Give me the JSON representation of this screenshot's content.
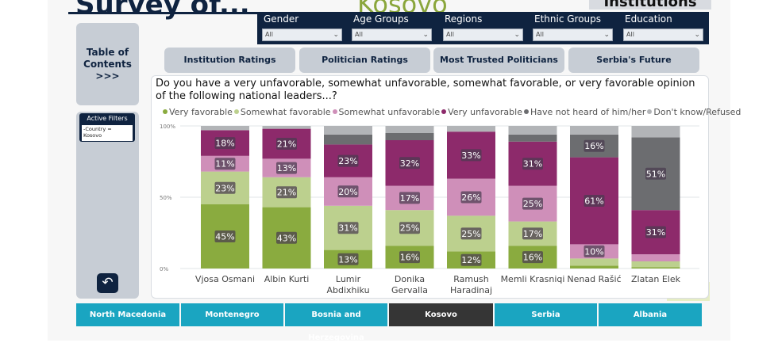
{
  "header": {
    "title_left": "Survey of...",
    "title_center": "Kosovo",
    "title_right": "Institutions"
  },
  "filters": [
    {
      "label": "Gender",
      "value": "All"
    },
    {
      "label": "Age Groups",
      "value": "All"
    },
    {
      "label": "Regions",
      "value": "All"
    },
    {
      "label": "Ethnic Groups",
      "value": "All"
    },
    {
      "label": "Education",
      "value": "All"
    }
  ],
  "sidebar": {
    "toc_line1": "Table of",
    "toc_line2": "Contents",
    "toc_line3": ">>>",
    "active_filters_title": "Active Filters",
    "active_filters_line1": "-Country =",
    "active_filters_line2": "Kosovo",
    "back_icon": "↶"
  },
  "tabs": [
    {
      "label": "Institution Ratings"
    },
    {
      "label": "Politician Ratings"
    },
    {
      "label": "Most Trusted Politicians"
    },
    {
      "label": "Serbia's Future"
    }
  ],
  "chart_data": {
    "type": "bar",
    "stacked": true,
    "title": "Do you have a very unfavorable, somewhat unfavorable, somewhat favorable, or very favorable opinion of the following national leaders...?",
    "y_ticks": [
      "100%",
      "50%",
      "0%"
    ],
    "ylim": [
      0,
      100
    ],
    "categories": [
      [
        "Vjosa Osmani"
      ],
      [
        "Albin Kurti"
      ],
      [
        "Lumir",
        "Abdixhiku"
      ],
      [
        "Donika",
        "Gervalla"
      ],
      [
        "Ramush",
        "Haradinaj"
      ],
      [
        "Memli Krasniqi"
      ],
      [
        "Nenad Rašić"
      ],
      [
        "Zlatan Elek"
      ]
    ],
    "series": [
      {
        "name": "Very favorable",
        "color": "#8aab3f",
        "values": [
          45,
          43,
          13,
          16,
          12,
          16,
          2,
          1
        ]
      },
      {
        "name": "Somewhat favorable",
        "color": "#bcd08e",
        "values": [
          23,
          21,
          31,
          25,
          25,
          17,
          5,
          4
        ]
      },
      {
        "name": "Somewhat unfavorable",
        "color": "#cf8fb9",
        "values": [
          11,
          13,
          20,
          17,
          26,
          25,
          10,
          5
        ]
      },
      {
        "name": "Very unfavorable",
        "color": "#8d2a6b",
        "values": [
          18,
          21,
          23,
          32,
          33,
          31,
          61,
          31
        ]
      },
      {
        "name": "Have not heard of him/her",
        "color": "#6c6d70",
        "values": [
          0,
          0,
          7,
          5,
          0,
          5,
          16,
          51
        ]
      },
      {
        "name": "Don't know/Refused",
        "color": "#b2b4b7",
        "values": [
          3,
          2,
          6,
          5,
          4,
          6,
          6,
          8
        ]
      }
    ],
    "labels": [
      {
        "bar": 0,
        "series": 0,
        "text": "45%"
      },
      {
        "bar": 0,
        "series": 1,
        "text": "23%"
      },
      {
        "bar": 0,
        "series": 2,
        "text": "11%"
      },
      {
        "bar": 0,
        "series": 3,
        "text": "18%"
      },
      {
        "bar": 1,
        "series": 0,
        "text": "43%"
      },
      {
        "bar": 1,
        "series": 1,
        "text": "21%"
      },
      {
        "bar": 1,
        "series": 2,
        "text": "13%"
      },
      {
        "bar": 1,
        "series": 3,
        "text": "21%"
      },
      {
        "bar": 2,
        "series": 0,
        "text": "13%"
      },
      {
        "bar": 2,
        "series": 1,
        "text": "31%"
      },
      {
        "bar": 2,
        "series": 2,
        "text": "20%"
      },
      {
        "bar": 2,
        "series": 3,
        "text": "23%"
      },
      {
        "bar": 3,
        "series": 0,
        "text": "16%"
      },
      {
        "bar": 3,
        "series": 1,
        "text": "25%"
      },
      {
        "bar": 3,
        "series": 2,
        "text": "17%"
      },
      {
        "bar": 3,
        "series": 3,
        "text": "32%"
      },
      {
        "bar": 4,
        "series": 0,
        "text": "12%"
      },
      {
        "bar": 4,
        "series": 1,
        "text": "25%"
      },
      {
        "bar": 4,
        "series": 2,
        "text": "26%"
      },
      {
        "bar": 4,
        "series": 3,
        "text": "33%"
      },
      {
        "bar": 5,
        "series": 0,
        "text": "16%"
      },
      {
        "bar": 5,
        "series": 1,
        "text": "17%"
      },
      {
        "bar": 5,
        "series": 2,
        "text": "25%"
      },
      {
        "bar": 5,
        "series": 3,
        "text": "31%"
      },
      {
        "bar": 6,
        "series": 2,
        "text": "10%"
      },
      {
        "bar": 6,
        "series": 3,
        "text": "61%"
      },
      {
        "bar": 6,
        "series": 4,
        "text": "16%"
      },
      {
        "bar": 7,
        "series": 3,
        "text": "31%"
      },
      {
        "bar": 7,
        "series": 4,
        "text": "51%"
      }
    ]
  },
  "countries": [
    {
      "label": "North Macedonia",
      "selected": false
    },
    {
      "label": "Montenegro",
      "selected": false
    },
    {
      "label": "Bosnia and Herzegovina",
      "selected": false
    },
    {
      "label": "Kosovo",
      "selected": true
    },
    {
      "label": "Serbia",
      "selected": false
    },
    {
      "label": "Albania",
      "selected": false
    }
  ]
}
